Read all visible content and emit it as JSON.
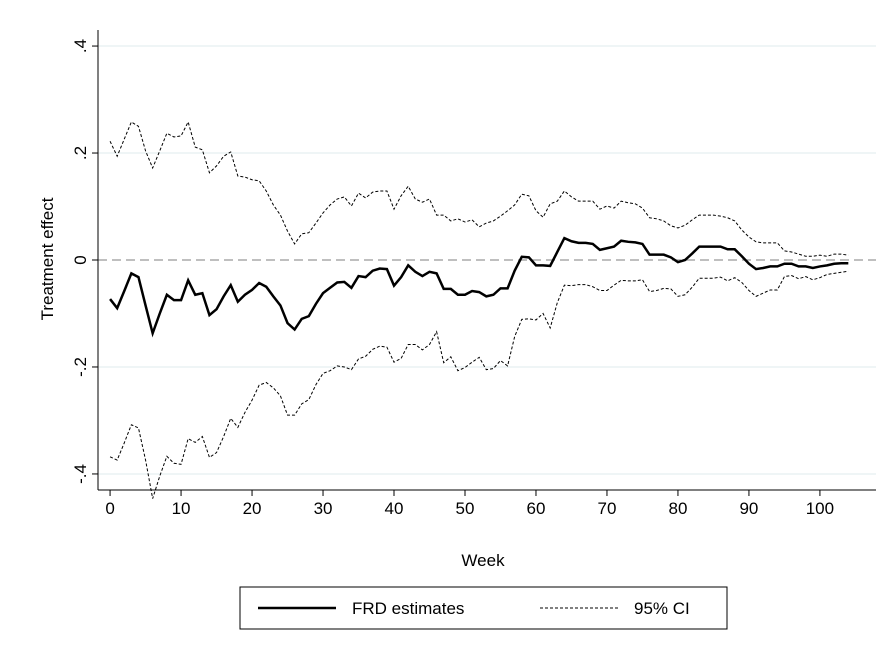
{
  "chart_data": {
    "type": "line",
    "x_label": "Week",
    "y_label": "Treatment effect",
    "x": [
      0,
      1,
      2,
      3,
      4,
      5,
      6,
      7,
      8,
      9,
      10,
      11,
      12,
      13,
      14,
      15,
      16,
      17,
      18,
      19,
      20,
      21,
      22,
      23,
      24,
      25,
      26,
      27,
      28,
      29,
      30,
      31,
      32,
      33,
      34,
      35,
      36,
      37,
      38,
      39,
      40,
      41,
      42,
      43,
      44,
      45,
      46,
      47,
      48,
      49,
      50,
      51,
      52,
      53,
      54,
      55,
      56,
      57,
      58,
      59,
      60,
      61,
      62,
      63,
      64,
      65,
      66,
      67,
      68,
      69,
      70,
      71,
      72,
      73,
      74,
      75,
      76,
      77,
      78,
      79,
      80,
      81,
      82,
      83,
      84,
      85,
      86,
      87,
      88,
      89,
      90,
      91,
      92,
      93,
      94,
      95,
      96,
      97,
      98,
      99,
      100,
      101,
      102,
      103,
      104
    ],
    "series": [
      {
        "name": "FRD estimates",
        "color": "#000000",
        "values": [
          -0.073,
          -0.09,
          -0.058,
          -0.025,
          -0.032,
          -0.085,
          -0.137,
          -0.1,
          -0.065,
          -0.075,
          -0.075,
          -0.038,
          -0.065,
          -0.062,
          -0.103,
          -0.092,
          -0.068,
          -0.047,
          -0.078,
          -0.065,
          -0.056,
          -0.043,
          -0.05,
          -0.068,
          -0.085,
          -0.118,
          -0.13,
          -0.11,
          -0.105,
          -0.082,
          -0.062,
          -0.052,
          -0.042,
          -0.041,
          -0.052,
          -0.03,
          -0.032,
          -0.02,
          -0.016,
          -0.017,
          -0.048,
          -0.032,
          -0.01,
          -0.022,
          -0.03,
          -0.022,
          -0.025,
          -0.054,
          -0.054,
          -0.065,
          -0.065,
          -0.058,
          -0.06,
          -0.068,
          -0.065,
          -0.053,
          -0.053,
          -0.02,
          0.006,
          0.005,
          -0.01,
          -0.01,
          -0.011,
          0.015,
          0.041,
          0.035,
          0.032,
          0.032,
          0.03,
          0.019,
          0.022,
          0.025,
          0.036,
          0.034,
          0.033,
          0.03,
          0.01,
          0.01,
          0.01,
          0.005,
          -0.004,
          0.0,
          0.012,
          0.025,
          0.025,
          0.025,
          0.025,
          0.02,
          0.02,
          0.007,
          -0.007,
          -0.017,
          -0.015,
          -0.012,
          -0.012,
          -0.007,
          -0.007,
          -0.012,
          -0.012,
          -0.015,
          -0.012,
          -0.01,
          -0.007,
          -0.006,
          -0.006
        ]
      }
    ],
    "ci": {
      "name": "95% CI",
      "color": "#000000",
      "upper": [
        0.222,
        0.194,
        0.226,
        0.258,
        0.25,
        0.204,
        0.172,
        0.204,
        0.237,
        0.23,
        0.232,
        0.258,
        0.211,
        0.206,
        0.163,
        0.176,
        0.194,
        0.202,
        0.157,
        0.155,
        0.15,
        0.148,
        0.129,
        0.103,
        0.084,
        0.054,
        0.03,
        0.049,
        0.051,
        0.069,
        0.088,
        0.103,
        0.114,
        0.118,
        0.101,
        0.125,
        0.116,
        0.127,
        0.129,
        0.129,
        0.095,
        0.12,
        0.138,
        0.114,
        0.108,
        0.114,
        0.084,
        0.084,
        0.073,
        0.077,
        0.071,
        0.075,
        0.062,
        0.069,
        0.073,
        0.082,
        0.092,
        0.103,
        0.123,
        0.12,
        0.092,
        0.08,
        0.105,
        0.11,
        0.129,
        0.118,
        0.11,
        0.11,
        0.11,
        0.095,
        0.101,
        0.097,
        0.11,
        0.107,
        0.105,
        0.097,
        0.079,
        0.077,
        0.073,
        0.064,
        0.06,
        0.065,
        0.075,
        0.084,
        0.084,
        0.084,
        0.082,
        0.079,
        0.073,
        0.056,
        0.043,
        0.034,
        0.032,
        0.032,
        0.032,
        0.017,
        0.015,
        0.011,
        0.007,
        0.007,
        0.009,
        0.007,
        0.011,
        0.011,
        0.009
      ],
      "lower": [
        -0.368,
        -0.374,
        -0.342,
        -0.308,
        -0.314,
        -0.374,
        -0.446,
        -0.404,
        -0.367,
        -0.38,
        -0.382,
        -0.334,
        -0.341,
        -0.33,
        -0.369,
        -0.36,
        -0.33,
        -0.296,
        -0.313,
        -0.285,
        -0.262,
        -0.234,
        -0.229,
        -0.239,
        -0.254,
        -0.29,
        -0.29,
        -0.269,
        -0.261,
        -0.233,
        -0.212,
        -0.207,
        -0.198,
        -0.2,
        -0.205,
        -0.185,
        -0.18,
        -0.167,
        -0.161,
        -0.163,
        -0.191,
        -0.184,
        -0.158,
        -0.158,
        -0.168,
        -0.158,
        -0.134,
        -0.192,
        -0.181,
        -0.207,
        -0.201,
        -0.191,
        -0.182,
        -0.205,
        -0.203,
        -0.188,
        -0.198,
        -0.143,
        -0.111,
        -0.11,
        -0.112,
        -0.1,
        -0.127,
        -0.08,
        -0.047,
        -0.048,
        -0.046,
        -0.046,
        -0.05,
        -0.057,
        -0.057,
        -0.047,
        -0.038,
        -0.039,
        -0.039,
        -0.037,
        -0.059,
        -0.057,
        -0.053,
        -0.054,
        -0.068,
        -0.065,
        -0.051,
        -0.034,
        -0.034,
        -0.034,
        -0.032,
        -0.039,
        -0.033,
        -0.042,
        -0.057,
        -0.068,
        -0.062,
        -0.056,
        -0.056,
        -0.031,
        -0.029,
        -0.035,
        -0.031,
        -0.037,
        -0.033,
        -0.027,
        -0.025,
        -0.023,
        -0.021
      ]
    },
    "reference_line": 0,
    "xlim": [
      -1.7,
      107.9
    ],
    "xticks": [
      0,
      10,
      20,
      30,
      40,
      50,
      60,
      70,
      80,
      90,
      100
    ],
    "ylim": [
      -0.43,
      0.43
    ],
    "yticks": [
      {
        "value": -0.4,
        "label": "-.4"
      },
      {
        "value": -0.2,
        "label": "-.2"
      },
      0,
      {
        "value": 0.2,
        "label": ".2"
      },
      {
        "value": 0.4,
        "label": ".4"
      }
    ],
    "grid": true,
    "legend": "bottom"
  }
}
